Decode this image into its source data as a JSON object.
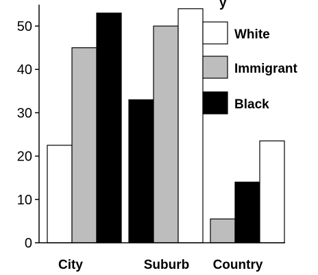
{
  "chart_data": {
    "type": "bar",
    "title_fragment": "y",
    "categories": [
      "City",
      "Suburb",
      "Country"
    ],
    "series": [
      {
        "name": "White",
        "color": "#ffffff",
        "values": [
          22.5,
          54,
          23.5
        ]
      },
      {
        "name": "Immigrant",
        "color": "#bdbdbd",
        "values": [
          45,
          50,
          5.5
        ]
      },
      {
        "name": "Black",
        "color": "#000000",
        "values": [
          53,
          33,
          14
        ]
      }
    ],
    "bar_order": [
      [
        "White",
        "Immigrant",
        "Black"
      ],
      [
        "Black",
        "Immigrant",
        "White"
      ],
      [
        "Immigrant",
        "Black",
        "White"
      ]
    ],
    "yticks": [
      0,
      10,
      20,
      30,
      40,
      50
    ],
    "ylim": [
      0,
      54
    ],
    "legend_position": "top-right",
    "grid": false
  }
}
